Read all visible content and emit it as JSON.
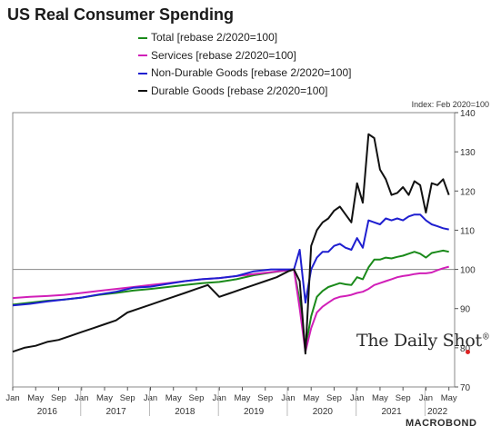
{
  "title": "US Real Consumer Spending",
  "index_note": "Index: Feb 2020=100",
  "watermark": "The Daily Shot",
  "watermark_mark": "®",
  "brand": "MACROBOND",
  "chart_data": {
    "type": "line",
    "title": "US Real Consumer Spending",
    "yaxis_position": "right",
    "ylim": [
      70,
      140
    ],
    "yticks": [
      70,
      80,
      90,
      100,
      110,
      120,
      130,
      140
    ],
    "reference_line": 100,
    "xlim": [
      "2016-01",
      "2022-06"
    ],
    "x_tick_labels": [
      "Jan",
      "May",
      "Sep",
      "Jan",
      "May",
      "Sep",
      "Jan",
      "May",
      "Sep",
      "Jan",
      "May",
      "Sep",
      "Jan",
      "May",
      "Sep",
      "Jan",
      "May",
      "Sep",
      "Jan",
      "May"
    ],
    "x_tick_months": [
      "2016-01",
      "2016-05",
      "2016-09",
      "2017-01",
      "2017-05",
      "2017-09",
      "2018-01",
      "2018-05",
      "2018-09",
      "2019-01",
      "2019-05",
      "2019-09",
      "2020-01",
      "2020-05",
      "2020-09",
      "2021-01",
      "2021-05",
      "2021-09",
      "2022-01",
      "2022-05"
    ],
    "year_labels": [
      "2016",
      "2017",
      "2018",
      "2019",
      "2020",
      "2021",
      "2022"
    ],
    "year_label_months": [
      "2016-07",
      "2017-07",
      "2018-07",
      "2019-07",
      "2020-07",
      "2021-07",
      "2022-03"
    ],
    "legend_position": "top",
    "grid": false,
    "series": [
      {
        "name": "Total [rebase 2/2020=100]",
        "color": "#1a8a1a",
        "x": [
          "2016-01",
          "2016-04",
          "2016-07",
          "2016-10",
          "2017-01",
          "2017-04",
          "2017-07",
          "2017-10",
          "2018-01",
          "2018-04",
          "2018-07",
          "2018-10",
          "2019-01",
          "2019-04",
          "2019-07",
          "2019-10",
          "2020-01",
          "2020-02",
          "2020-03",
          "2020-04",
          "2020-05",
          "2020-06",
          "2020-07",
          "2020-08",
          "2020-09",
          "2020-10",
          "2020-11",
          "2020-12",
          "2021-01",
          "2021-02",
          "2021-03",
          "2021-04",
          "2021-05",
          "2021-06",
          "2021-07",
          "2021-08",
          "2021-09",
          "2021-10",
          "2021-11",
          "2021-12",
          "2022-01",
          "2022-02",
          "2022-03",
          "2022-04",
          "2022-05"
        ],
        "y": [
          91,
          91.5,
          92,
          92.3,
          92.8,
          93.5,
          94,
          94.6,
          95,
          95.5,
          96,
          96.5,
          96.8,
          97.5,
          98.5,
          99.2,
          99.8,
          100,
          92,
          80,
          88,
          93,
          94.5,
          95.5,
          96,
          96.5,
          96.2,
          96,
          98,
          97.5,
          100.5,
          102.5,
          102.5,
          103,
          102.8,
          103.2,
          103.5,
          104,
          104.5,
          104,
          103,
          104.2,
          104.5,
          104.8,
          104.5
        ]
      },
      {
        "name": "Services [rebase 2/2020=100]",
        "color": "#d11fb8",
        "x": [
          "2016-01",
          "2016-04",
          "2016-07",
          "2016-10",
          "2017-01",
          "2017-04",
          "2017-07",
          "2017-10",
          "2018-01",
          "2018-04",
          "2018-07",
          "2018-10",
          "2019-01",
          "2019-04",
          "2019-07",
          "2019-10",
          "2020-01",
          "2020-02",
          "2020-03",
          "2020-04",
          "2020-05",
          "2020-06",
          "2020-07",
          "2020-08",
          "2020-09",
          "2020-10",
          "2020-11",
          "2020-12",
          "2021-01",
          "2021-02",
          "2021-03",
          "2021-04",
          "2021-05",
          "2021-06",
          "2021-07",
          "2021-08",
          "2021-09",
          "2021-10",
          "2021-11",
          "2021-12",
          "2022-01",
          "2022-02",
          "2022-03",
          "2022-04",
          "2022-05"
        ],
        "y": [
          92.7,
          93,
          93.2,
          93.5,
          94,
          94.5,
          95,
          95.5,
          96,
          96.5,
          97,
          97.5,
          97.8,
          98.3,
          98.8,
          99.3,
          99.8,
          100,
          90,
          79,
          85,
          89,
          90.5,
          91.5,
          92.5,
          93,
          93.2,
          93.5,
          94,
          94.3,
          95,
          96,
          96.5,
          97,
          97.5,
          98,
          98.3,
          98.5,
          98.8,
          99,
          99,
          99.2,
          99.8,
          100.3,
          100.7
        ]
      },
      {
        "name": "Non-Durable Goods [rebase 2/2020=100]",
        "color": "#1f1fd0",
        "x": [
          "2016-01",
          "2016-04",
          "2016-07",
          "2016-10",
          "2017-01",
          "2017-04",
          "2017-07",
          "2017-10",
          "2018-01",
          "2018-04",
          "2018-07",
          "2018-10",
          "2019-01",
          "2019-04",
          "2019-07",
          "2019-10",
          "2020-01",
          "2020-02",
          "2020-03",
          "2020-04",
          "2020-05",
          "2020-06",
          "2020-07",
          "2020-08",
          "2020-09",
          "2020-10",
          "2020-11",
          "2020-12",
          "2021-01",
          "2021-02",
          "2021-03",
          "2021-04",
          "2021-05",
          "2021-06",
          "2021-07",
          "2021-08",
          "2021-09",
          "2021-10",
          "2021-11",
          "2021-12",
          "2022-01",
          "2022-02",
          "2022-03",
          "2022-04",
          "2022-05"
        ],
        "y": [
          90.8,
          91.2,
          91.8,
          92.3,
          92.8,
          93.6,
          94.3,
          95.3,
          95.6,
          96.3,
          97,
          97.5,
          97.8,
          98.3,
          99.5,
          100,
          100,
          100,
          105,
          91.5,
          100,
          103,
          104.5,
          104.5,
          106,
          106.5,
          105.5,
          105,
          108,
          105.5,
          112.5,
          112,
          111.5,
          113,
          112.5,
          113,
          112.5,
          113.5,
          114,
          114,
          112.5,
          111.5,
          111,
          110.5,
          110.2
        ]
      },
      {
        "name": "Durable Goods [rebase 2/2020=100]",
        "color": "#111111",
        "x": [
          "2016-01",
          "2016-03",
          "2016-05",
          "2016-07",
          "2016-09",
          "2016-11",
          "2017-01",
          "2017-03",
          "2017-05",
          "2017-07",
          "2017-09",
          "2017-11",
          "2018-01",
          "2018-03",
          "2018-05",
          "2018-07",
          "2018-09",
          "2018-11",
          "2019-01",
          "2019-03",
          "2019-05",
          "2019-07",
          "2019-09",
          "2019-11",
          "2020-01",
          "2020-02",
          "2020-03",
          "2020-04",
          "2020-05",
          "2020-06",
          "2020-07",
          "2020-08",
          "2020-09",
          "2020-10",
          "2020-11",
          "2020-12",
          "2021-01",
          "2021-02",
          "2021-03",
          "2021-04",
          "2021-05",
          "2021-06",
          "2021-07",
          "2021-08",
          "2021-09",
          "2021-10",
          "2021-11",
          "2021-12",
          "2022-01",
          "2022-02",
          "2022-03",
          "2022-04",
          "2022-05"
        ],
        "y": [
          79,
          80,
          80.5,
          81.5,
          82,
          83,
          84,
          85,
          86,
          87,
          89,
          90,
          91,
          92,
          93,
          94,
          95,
          96,
          93,
          94,
          95,
          96,
          97,
          98,
          99.5,
          100,
          97,
          78.5,
          106,
          110,
          112,
          113,
          115,
          116,
          114,
          112,
          122,
          117,
          134.5,
          133.5,
          125.5,
          123,
          119,
          119.5,
          121,
          119,
          122.5,
          121.5,
          114.5,
          122,
          121.5,
          123,
          119
        ]
      }
    ]
  }
}
